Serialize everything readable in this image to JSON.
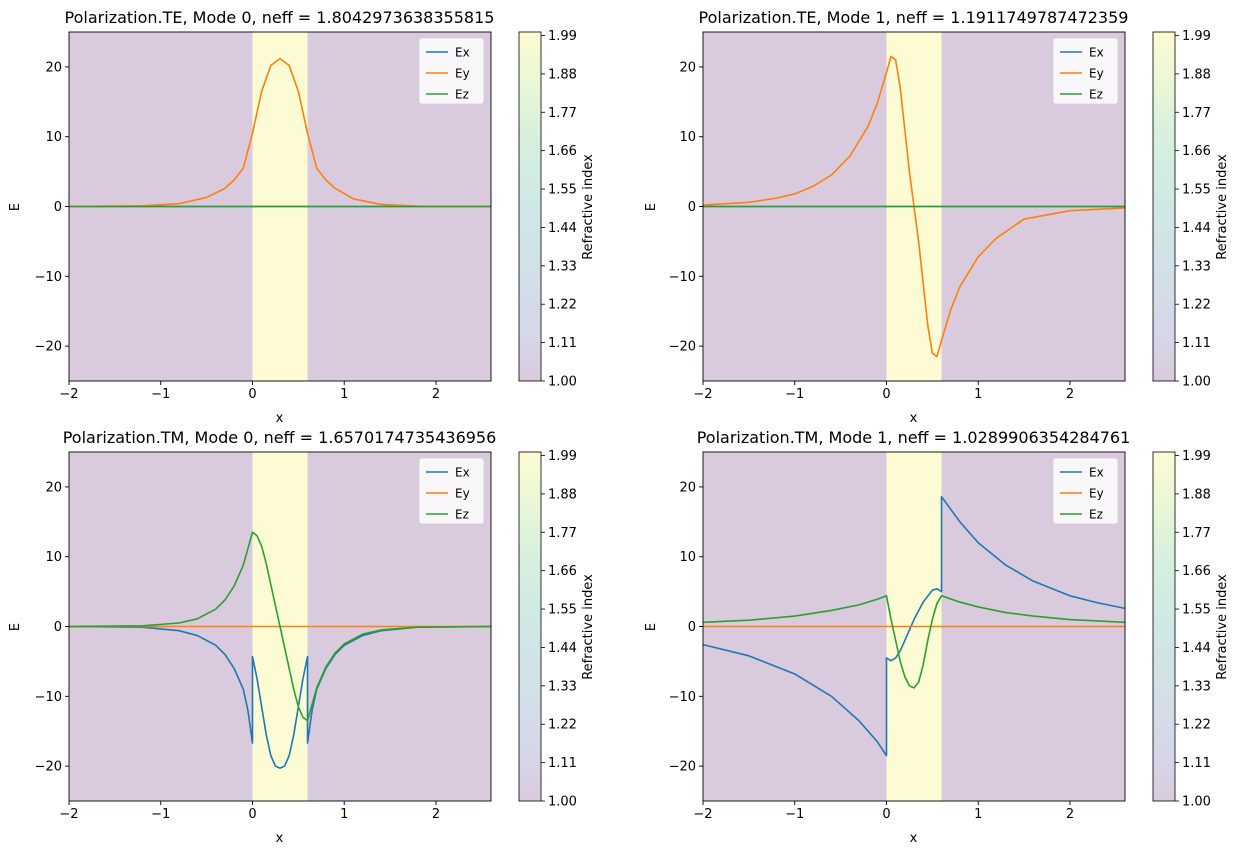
{
  "figure": {
    "colors": {
      "cladding": "#d9cbdd",
      "core": "#fdfbd3",
      "Ex": "#1f77b4",
      "Ey": "#ff7f0e",
      "Ez": "#2ca02c"
    }
  },
  "chart_data": [
    {
      "type": "line",
      "title": "Polarization.TE,  Mode 0, neff = 1.8042973638355815",
      "xlabel": "x",
      "ylabel": "E",
      "xlim": [
        -2,
        2.6
      ],
      "ylim": [
        -25,
        25
      ],
      "xticks": [
        -2,
        -1,
        0,
        1,
        2
      ],
      "yticks": [
        -20,
        -10,
        0,
        10,
        20
      ],
      "core_region": [
        0,
        0.6
      ],
      "legend": [
        "Ex",
        "Ey",
        "Ez"
      ],
      "legend_position": "top-right",
      "colorbar": {
        "label": "Refractive index",
        "min": 1.0,
        "max": 2.0,
        "ticks": [
          "1.00",
          "1.11",
          "1.22",
          "1.33",
          "1.44",
          "1.55",
          "1.66",
          "1.77",
          "1.88",
          "1.99"
        ]
      },
      "series": [
        {
          "name": "Ex",
          "x": [
            -2,
            2.6
          ],
          "y": [
            0,
            0
          ]
        },
        {
          "name": "Ey",
          "x": [
            -2,
            -1.2,
            -0.8,
            -0.5,
            -0.3,
            -0.2,
            -0.1,
            0,
            0.1,
            0.2,
            0.3,
            0.4,
            0.5,
            0.6,
            0.7,
            0.8,
            0.9,
            1.1,
            1.4,
            1.8,
            2.6
          ],
          "y": [
            0,
            0.1,
            0.4,
            1.3,
            2.6,
            3.8,
            5.5,
            10.5,
            16.5,
            20.2,
            21.2,
            20.2,
            16.5,
            10.5,
            5.5,
            3.8,
            2.6,
            1.1,
            0.3,
            0.05,
            0
          ]
        },
        {
          "name": "Ez",
          "x": [
            -2,
            2.6
          ],
          "y": [
            0,
            0
          ]
        }
      ]
    },
    {
      "type": "line",
      "title": "Polarization.TE,  Mode 1, neff = 1.1911749787472359",
      "xlabel": "x",
      "ylabel": "E",
      "xlim": [
        -2,
        2.6
      ],
      "ylim": [
        -25,
        25
      ],
      "xticks": [
        -2,
        -1,
        0,
        1,
        2
      ],
      "yticks": [
        -20,
        -10,
        0,
        10,
        20
      ],
      "core_region": [
        0,
        0.6
      ],
      "legend": [
        "Ex",
        "Ey",
        "Ez"
      ],
      "legend_position": "top-right",
      "colorbar": {
        "label": "Refractive index",
        "min": 1.0,
        "max": 2.0,
        "ticks": [
          "1.00",
          "1.11",
          "1.22",
          "1.33",
          "1.44",
          "1.55",
          "1.66",
          "1.77",
          "1.88",
          "1.99"
        ]
      },
      "series": [
        {
          "name": "Ex",
          "x": [
            -2,
            2.6
          ],
          "y": [
            0,
            0
          ]
        },
        {
          "name": "Ey",
          "x": [
            -2,
            -1.5,
            -1.2,
            -1,
            -0.8,
            -0.6,
            -0.4,
            -0.2,
            -0.1,
            0,
            0.05,
            0.1,
            0.15,
            0.2,
            0.25,
            0.3,
            0.35,
            0.4,
            0.45,
            0.5,
            0.55,
            0.6,
            0.7,
            0.8,
            1,
            1.2,
            1.5,
            2,
            2.6
          ],
          "y": [
            0.2,
            0.6,
            1.2,
            1.8,
            2.9,
            4.5,
            7.2,
            11.5,
            14.8,
            19.2,
            21.5,
            21.0,
            17.0,
            11.0,
            5.0,
            0,
            -5.0,
            -11.0,
            -17.0,
            -21.0,
            -21.5,
            -19.2,
            -14.8,
            -11.5,
            -7.2,
            -4.5,
            -1.8,
            -0.6,
            -0.2
          ]
        },
        {
          "name": "Ez",
          "x": [
            -2,
            2.6
          ],
          "y": [
            0,
            0
          ]
        }
      ]
    },
    {
      "type": "line",
      "title": "Polarization.TM,  Mode 0, neff = 1.6570174735436956",
      "xlabel": "x",
      "ylabel": "E",
      "xlim": [
        -2,
        2.6
      ],
      "ylim": [
        -25,
        25
      ],
      "xticks": [
        -2,
        -1,
        0,
        1,
        2
      ],
      "yticks": [
        -20,
        -10,
        0,
        10,
        20
      ],
      "core_region": [
        0,
        0.6
      ],
      "legend": [
        "Ex",
        "Ey",
        "Ez"
      ],
      "legend_position": "top-right",
      "colorbar": {
        "label": "Refractive index",
        "min": 1.0,
        "max": 2.0,
        "ticks": [
          "1.00",
          "1.11",
          "1.22",
          "1.33",
          "1.44",
          "1.55",
          "1.66",
          "1.77",
          "1.88",
          "1.99"
        ]
      },
      "series": [
        {
          "name": "Ex",
          "x": [
            -2,
            -1.2,
            -0.8,
            -0.6,
            -0.4,
            -0.3,
            -0.2,
            -0.1,
            -0.05,
            0,
            0,
            0.05,
            0.1,
            0.15,
            0.2,
            0.25,
            0.3,
            0.35,
            0.4,
            0.45,
            0.5,
            0.55,
            0.6,
            0.6,
            0.65,
            0.7,
            0.8,
            0.9,
            1.0,
            1.2,
            1.4,
            1.8,
            2.6
          ],
          "y": [
            0,
            -0.1,
            -0.6,
            -1.3,
            -2.7,
            -4.0,
            -6.0,
            -9.0,
            -12.0,
            -16.7,
            -4.3,
            -7.5,
            -11.5,
            -15.5,
            -18.5,
            -20.0,
            -20.3,
            -20.0,
            -18.5,
            -15.5,
            -11.5,
            -7.5,
            -4.3,
            -16.7,
            -12.0,
            -9.0,
            -6.0,
            -4.0,
            -2.7,
            -1.3,
            -0.6,
            -0.1,
            0
          ]
        },
        {
          "name": "Ey",
          "x": [
            -2,
            2.6
          ],
          "y": [
            0,
            0
          ]
        },
        {
          "name": "Ez",
          "x": [
            -2,
            -1.2,
            -0.8,
            -0.6,
            -0.4,
            -0.3,
            -0.2,
            -0.1,
            0,
            0.05,
            0.1,
            0.15,
            0.2,
            0.25,
            0.3,
            0.35,
            0.4,
            0.45,
            0.5,
            0.55,
            0.6,
            0.7,
            0.8,
            0.9,
            1.0,
            1.2,
            1.4,
            1.8,
            2.6
          ],
          "y": [
            0,
            0.1,
            0.5,
            1.1,
            2.5,
            3.8,
            5.8,
            8.8,
            13.5,
            13.0,
            11.5,
            9.0,
            6.0,
            3.0,
            0,
            -3.0,
            -6.0,
            -9.0,
            -11.5,
            -13.0,
            -13.5,
            -8.8,
            -5.8,
            -3.8,
            -2.5,
            -1.1,
            -0.5,
            -0.1,
            0
          ]
        }
      ]
    },
    {
      "type": "line",
      "title": "Polarization.TM,  Mode 1, neff = 1.0289906354284761",
      "xlabel": "x",
      "ylabel": "E",
      "xlim": [
        -2,
        2.6
      ],
      "ylim": [
        -25,
        25
      ],
      "xticks": [
        -2,
        -1,
        0,
        1,
        2
      ],
      "yticks": [
        -20,
        -10,
        0,
        10,
        20
      ],
      "core_region": [
        0,
        0.6
      ],
      "legend": [
        "Ex",
        "Ey",
        "Ez"
      ],
      "legend_position": "top-right",
      "colorbar": {
        "label": "Refractive index",
        "min": 1.0,
        "max": 2.0,
        "ticks": [
          "1.00",
          "1.11",
          "1.22",
          "1.33",
          "1.44",
          "1.55",
          "1.66",
          "1.77",
          "1.88",
          "1.99"
        ]
      },
      "series": [
        {
          "name": "Ex",
          "x": [
            -2,
            -1.5,
            -1.0,
            -0.6,
            -0.3,
            -0.1,
            0,
            0,
            0.05,
            0.1,
            0.15,
            0.2,
            0.3,
            0.4,
            0.5,
            0.55,
            0.6,
            0.6,
            0.8,
            1.0,
            1.3,
            1.6,
            2.0,
            2.3,
            2.6
          ],
          "y": [
            -2.6,
            -4.2,
            -6.8,
            -10.0,
            -13.5,
            -16.5,
            -18.5,
            -4.5,
            -4.9,
            -4.5,
            -3.5,
            -2.0,
            1.0,
            3.5,
            5.2,
            5.4,
            5.0,
            18.6,
            15.0,
            12.0,
            8.8,
            6.5,
            4.4,
            3.4,
            2.6
          ]
        },
        {
          "name": "Ey",
          "x": [
            -2,
            2.6
          ],
          "y": [
            0,
            0
          ]
        },
        {
          "name": "Ez",
          "x": [
            -2,
            -1.5,
            -1.0,
            -0.6,
            -0.3,
            -0.1,
            0,
            0.05,
            0.1,
            0.15,
            0.2,
            0.25,
            0.3,
            0.35,
            0.4,
            0.45,
            0.5,
            0.55,
            0.6,
            0.8,
            1.0,
            1.3,
            1.6,
            2.0,
            2.3,
            2.6
          ],
          "y": [
            0.6,
            0.9,
            1.5,
            2.3,
            3.1,
            3.9,
            4.4,
            1.0,
            -2.0,
            -5.0,
            -7.2,
            -8.5,
            -8.8,
            -8.0,
            -5.5,
            -2.0,
            1.0,
            3.3,
            4.4,
            3.5,
            2.8,
            2.0,
            1.5,
            1.0,
            0.8,
            0.6
          ]
        }
      ]
    }
  ]
}
